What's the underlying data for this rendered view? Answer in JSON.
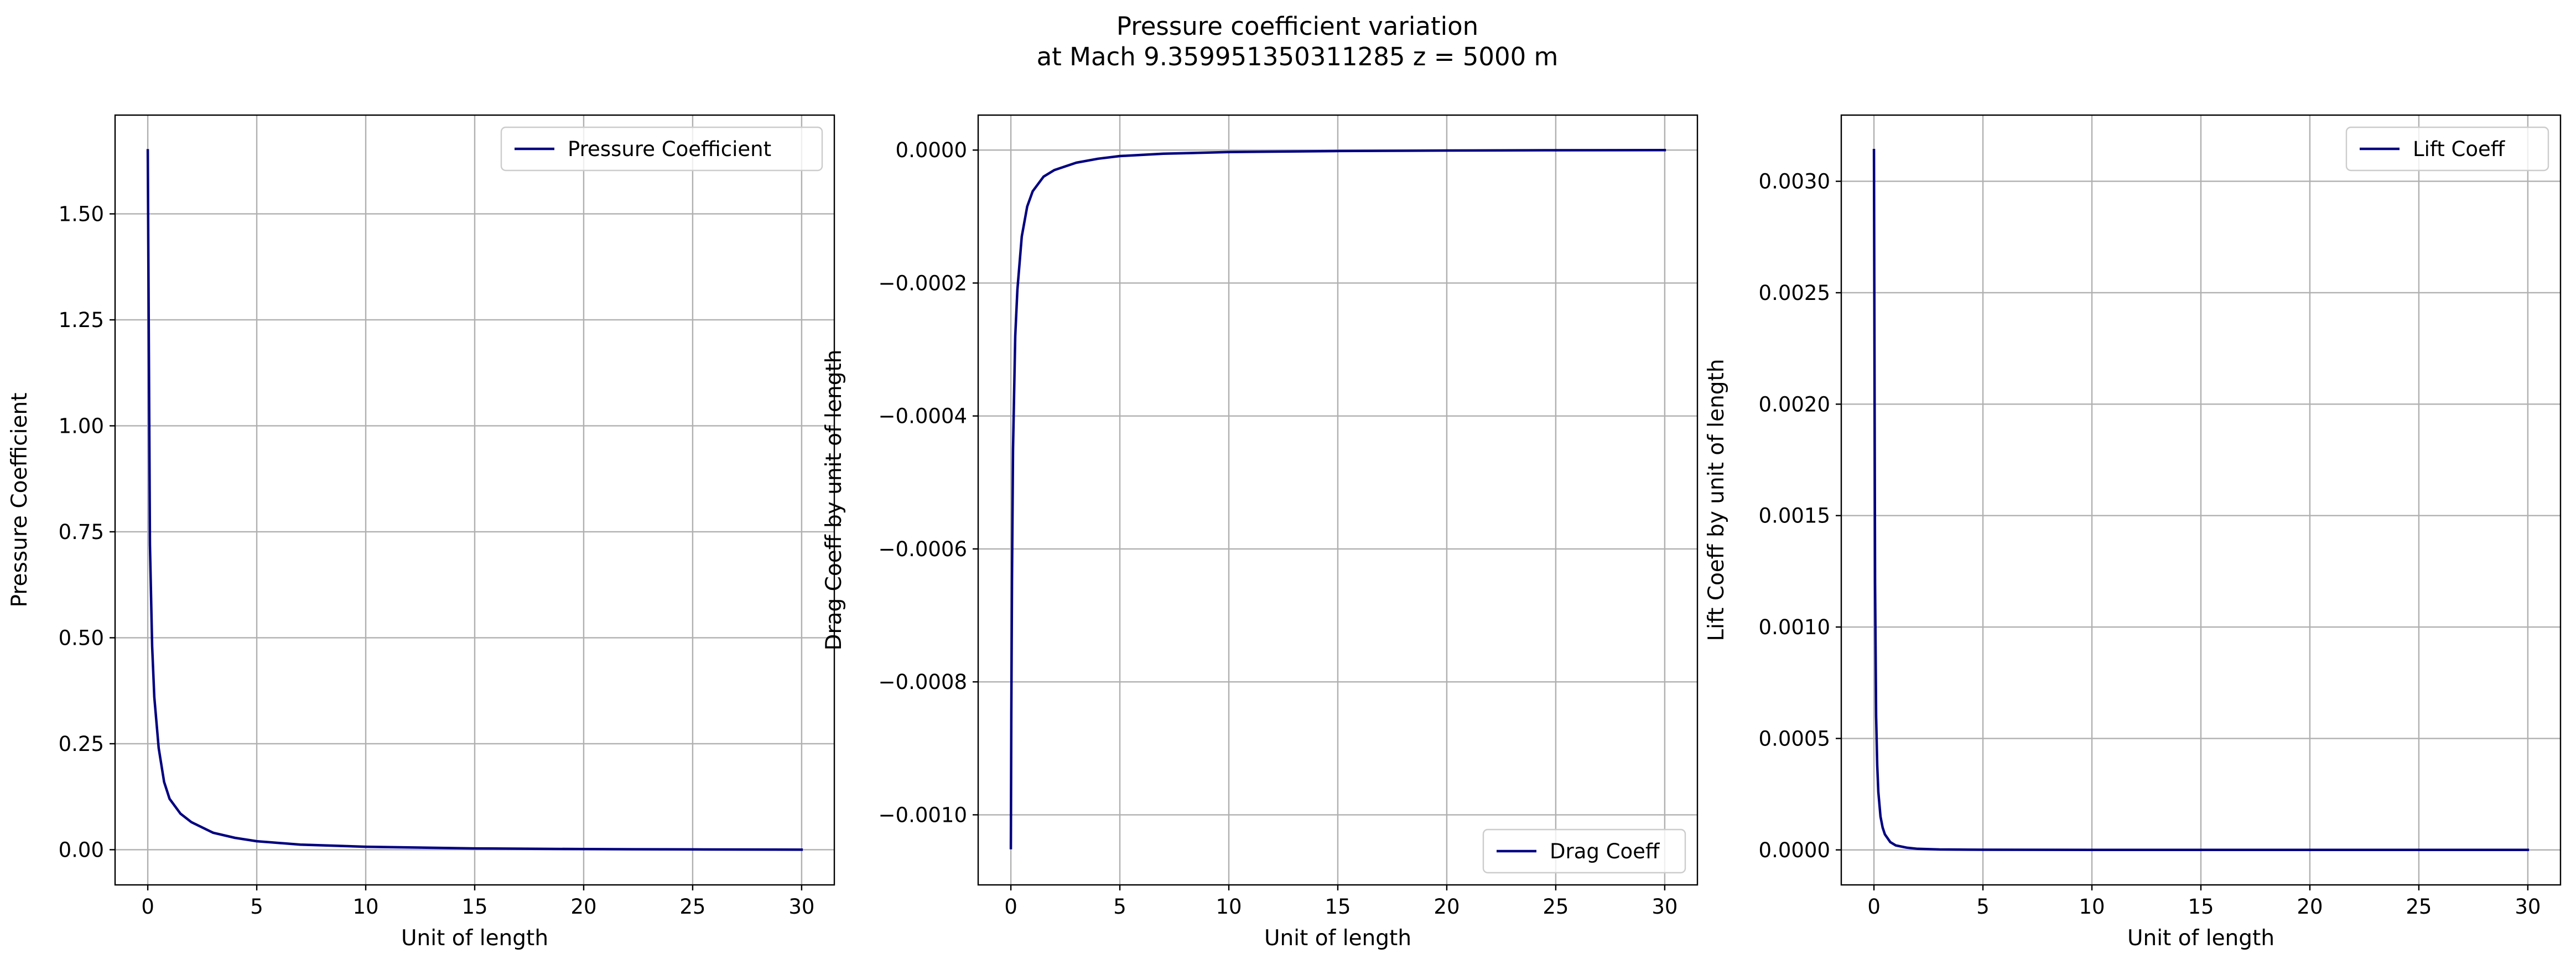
{
  "figure": {
    "suptitle_line1": "Pressure coefficient variation",
    "suptitle_line2": "at Mach 9.359951350311285 z = 5000 m"
  },
  "colors": {
    "line": "#000080",
    "grid": "#b0b0b0",
    "axes": "#000000",
    "legend_border": "#cccccc"
  },
  "chart_data": [
    {
      "type": "line",
      "title": "",
      "xlabel": "Unit of length",
      "ylabel": "Pressure Coefficient",
      "xlim": [
        -1.5,
        31.5
      ],
      "ylim": [
        -0.083,
        1.733
      ],
      "xticks": [
        0,
        5,
        10,
        15,
        20,
        25,
        30
      ],
      "xtick_labels": [
        "0",
        "5",
        "10",
        "15",
        "20",
        "25",
        "30"
      ],
      "yticks": [
        0.0,
        0.25,
        0.5,
        0.75,
        1.0,
        1.25,
        1.5
      ],
      "ytick_labels": [
        "0.00",
        "0.25",
        "0.50",
        "0.75",
        "1.00",
        "1.25",
        "1.50"
      ],
      "grid": true,
      "legend_position": "upper right",
      "series": [
        {
          "name": "Pressure Coefficient",
          "x": [
            0,
            0.1,
            0.2,
            0.3,
            0.5,
            0.75,
            1,
            1.5,
            2,
            3,
            4,
            5,
            7,
            10,
            15,
            20,
            25,
            30
          ],
          "y": [
            1.65,
            0.72,
            0.48,
            0.36,
            0.24,
            0.16,
            0.12,
            0.085,
            0.065,
            0.04,
            0.028,
            0.02,
            0.012,
            0.007,
            0.003,
            0.0015,
            0.0007,
            0.0
          ]
        }
      ]
    },
    {
      "type": "line",
      "title": "",
      "xlabel": "Unit of length",
      "ylabel": "Drag Coeff by unit of length",
      "xlim": [
        -1.5,
        31.5
      ],
      "ylim": [
        -0.0011054,
        5.26e-05
      ],
      "xticks": [
        0,
        5,
        10,
        15,
        20,
        25,
        30
      ],
      "xtick_labels": [
        "0",
        "5",
        "10",
        "15",
        "20",
        "25",
        "30"
      ],
      "yticks": [
        -0.001,
        -0.0008,
        -0.0006,
        -0.0004,
        -0.0002,
        0.0
      ],
      "ytick_labels": [
        "−0.0010",
        "−0.0008",
        "−0.0006",
        "−0.0004",
        "−0.0002",
        "0.0000"
      ],
      "grid": true,
      "legend_position": "lower right",
      "series": [
        {
          "name": "Drag Coeff",
          "x": [
            0,
            0.02,
            0.05,
            0.1,
            0.2,
            0.3,
            0.5,
            0.75,
            1,
            1.5,
            2,
            3,
            4,
            5,
            7,
            10,
            15,
            20,
            25,
            30
          ],
          "y": [
            -0.00105,
            -0.00085,
            -0.00065,
            -0.00045,
            -0.00028,
            -0.00021,
            -0.00013,
            -8.5e-05,
            -6.2e-05,
            -4e-05,
            -3e-05,
            -1.9e-05,
            -1.3e-05,
            -9e-06,
            -5.5e-06,
            -3e-06,
            -1.4e-06,
            -7e-07,
            -3e-07,
            0.0
          ]
        }
      ]
    },
    {
      "type": "line",
      "title": "",
      "xlabel": "Unit of length",
      "ylabel": "Lift Coeff by unit of length",
      "xlim": [
        -1.5,
        31.5
      ],
      "ylim": [
        -0.000157,
        0.003297
      ],
      "xticks": [
        0,
        5,
        10,
        15,
        20,
        25,
        30
      ],
      "xtick_labels": [
        "0",
        "5",
        "10",
        "15",
        "20",
        "25",
        "30"
      ],
      "yticks": [
        0.0,
        0.0005,
        0.001,
        0.0015,
        0.002,
        0.0025,
        0.003
      ],
      "ytick_labels": [
        "0.0000",
        "0.0005",
        "0.0010",
        "0.0015",
        "0.0020",
        "0.0025",
        "0.0030"
      ],
      "grid": true,
      "legend_position": "upper right",
      "series": [
        {
          "name": "Lift Coeff",
          "x": [
            0,
            0.05,
            0.1,
            0.15,
            0.2,
            0.3,
            0.4,
            0.5,
            0.75,
            1,
            1.5,
            2,
            3,
            5,
            10,
            30
          ],
          "y": [
            0.00314,
            0.0012,
            0.0006,
            0.00038,
            0.00026,
            0.00015,
            0.0001,
            7e-05,
            3.5e-05,
            2e-05,
            1e-05,
            5e-06,
            2e-06,
            8e-07,
            2e-07,
            0.0
          ]
        }
      ]
    }
  ]
}
